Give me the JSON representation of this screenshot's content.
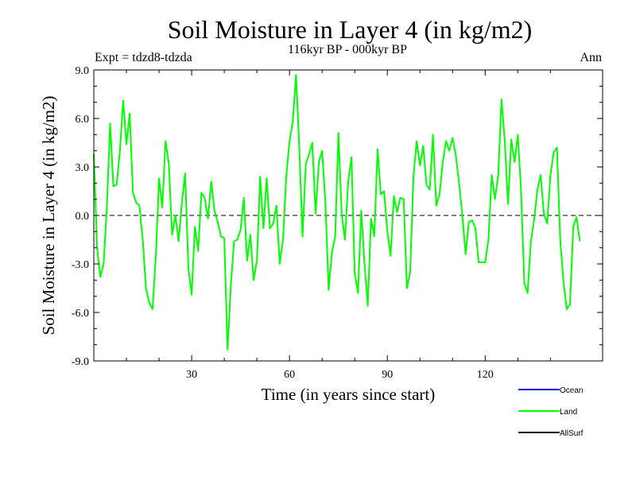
{
  "chart_data": {
    "type": "line",
    "title": "Soil Moisture in Layer 4 (in kg/m2)",
    "subtitle": "116kyr BP - 000kyr BP",
    "expt_label": "Expt = tdzd8-tdzda",
    "season_label": "Ann",
    "xlabel": "Time (in years since start)",
    "ylabel": "Soil Moisture in Layer 4 (in kg/m2)",
    "xlim": [
      0,
      156
    ],
    "ylim": [
      -9,
      9
    ],
    "x_ticks": [
      30,
      60,
      90,
      120
    ],
    "x_tick_labels": [
      "30",
      "60",
      "90",
      "120"
    ],
    "y_ticks": [
      -9,
      -6,
      -3,
      0,
      3,
      6,
      9
    ],
    "y_tick_labels": [
      "-9.0",
      "-6.0",
      "-3.0",
      "0.0",
      "3.0",
      "6.0",
      "9.0"
    ],
    "zero_line": true,
    "legend": [
      {
        "name": "Ocean",
        "color": "#0000ff"
      },
      {
        "name": "Land",
        "color": "#00ff00"
      },
      {
        "name": "AllSurf",
        "color": "#000000"
      }
    ],
    "series": [
      {
        "name": "Land",
        "color": "#00ff00",
        "values": [
          3.8,
          -2.0,
          -3.8,
          -3.0,
          0.5,
          5.7,
          1.8,
          1.9,
          4.0,
          7.1,
          4.4,
          6.3,
          1.4,
          0.8,
          0.6,
          -1.5,
          -4.5,
          -5.4,
          -5.8,
          -2.6,
          2.3,
          0.5,
          4.6,
          3.2,
          -1.2,
          0.0,
          -1.6,
          0.8,
          2.6,
          -3.3,
          -4.9,
          -0.7,
          -2.2,
          1.4,
          1.1,
          -0.2,
          2.1,
          0.3,
          -0.4,
          -1.3,
          -1.4,
          -8.3,
          -4.4,
          -1.6,
          -1.5,
          -0.9,
          1.1,
          -2.8,
          -1.2,
          -4.0,
          -2.8,
          2.4,
          -0.8,
          2.3,
          -0.8,
          -0.5,
          0.6,
          -3.0,
          -1.5,
          2.4,
          4.6,
          5.8,
          8.7,
          4.2,
          -1.3,
          3.2,
          3.8,
          4.5,
          0.1,
          3.3,
          4.0,
          0.8,
          -4.6,
          -2.3,
          -1.3,
          5.1,
          0.1,
          -1.5,
          2.1,
          3.6,
          -3.6,
          -4.8,
          0.3,
          -3.0,
          -5.6,
          -0.2,
          -1.3,
          4.1,
          1.3,
          1.5,
          -1.0,
          -2.5,
          1.2,
          0.2,
          1.1,
          1.0,
          -4.5,
          -3.5,
          2.4,
          4.6,
          3.1,
          4.3,
          1.9,
          1.6,
          5.0,
          0.6,
          1.3,
          3.3,
          4.6,
          4.0,
          4.8,
          3.7,
          2.0,
          0.0,
          -2.4,
          -0.4,
          -0.3,
          -0.8,
          -2.9,
          -2.9,
          -2.9,
          -1.5,
          2.5,
          1.0,
          2.5,
          7.2,
          4.6,
          0.7,
          4.7,
          3.3,
          5.0,
          1.5,
          -4.2,
          -4.8,
          -1.6,
          -0.3,
          1.6,
          2.5,
          0.1,
          -0.5,
          2.5,
          3.9,
          4.2,
          -1.5,
          -4.1,
          -5.8,
          -5.5,
          -0.7,
          -0.1,
          -1.6
        ]
      }
    ]
  }
}
